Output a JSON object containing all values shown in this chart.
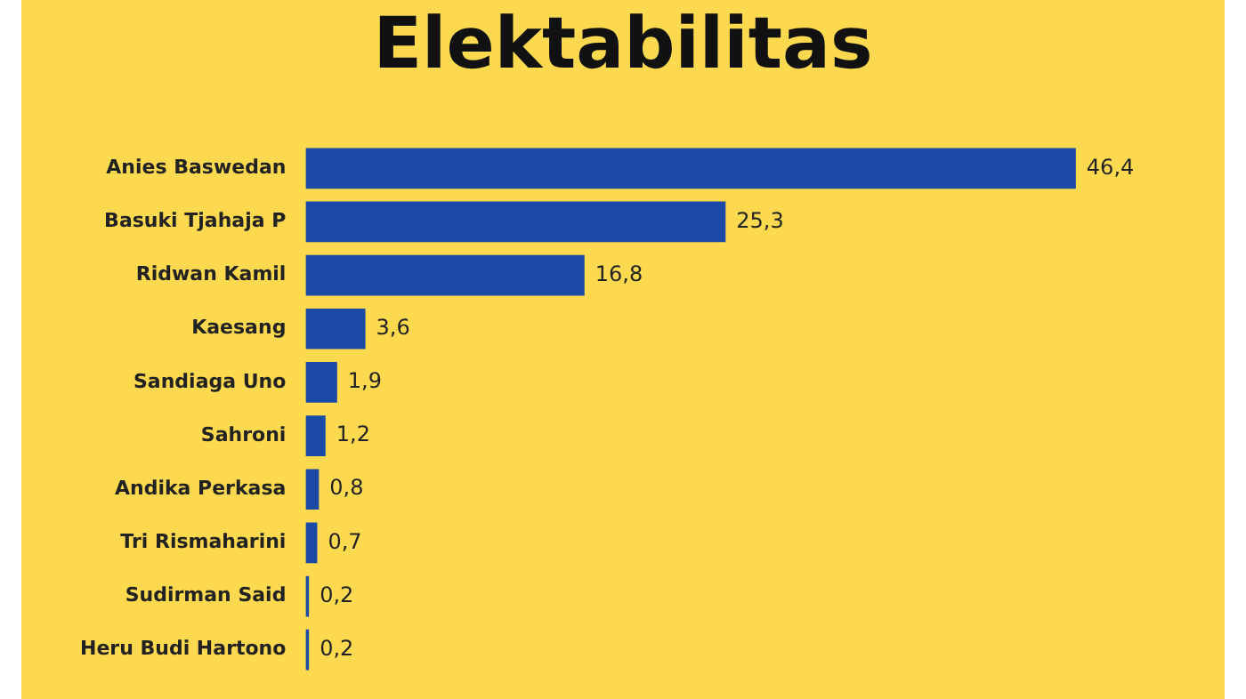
{
  "chart_data": {
    "type": "bar",
    "orientation": "horizontal",
    "title": "Elektabilitas",
    "categories": [
      "Anies Baswedan",
      "Basuki Tjahaja P",
      "Ridwan Kamil",
      "Kaesang",
      "Sandiaga Uno",
      "Sahroni",
      "Andika Perkasa",
      "Tri Rismaharini",
      "Sudirman Said",
      "Heru Budi Hartono"
    ],
    "values": [
      46.4,
      25.3,
      16.8,
      3.6,
      1.9,
      1.2,
      0.8,
      0.7,
      0.2,
      0.2
    ],
    "value_labels": [
      "46,4",
      "25,3",
      "16,8",
      "3,6",
      "1,9",
      "1,2",
      "0,8",
      "0,7",
      "0,2",
      "0,2"
    ],
    "color": "#1a4aa6",
    "tick_labels": "y"
  }
}
